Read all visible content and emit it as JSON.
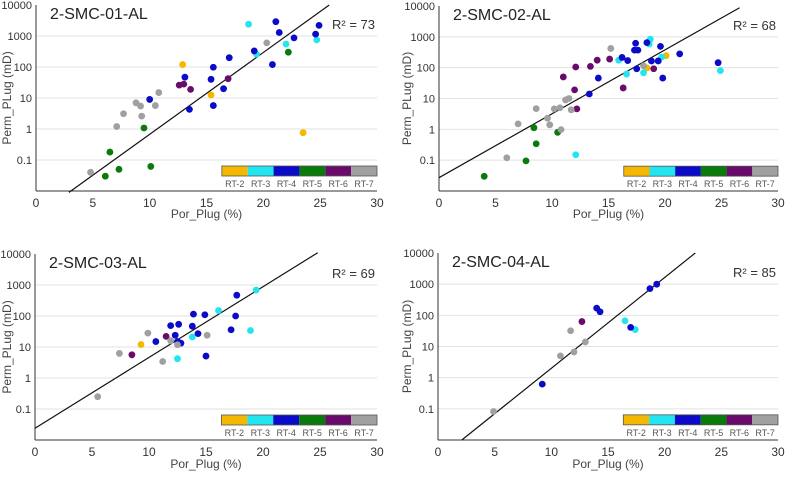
{
  "colors": {
    "RT-2": "#f5b800",
    "RT-3": "#22e5f0",
    "RT-4": "#0a0ac8",
    "RT-5": "#0a7a0a",
    "RT-6": "#6a0a6a",
    "RT-7": "#a0a0a0"
  },
  "chart_data": [
    {
      "type": "scatter",
      "title": "2-SMC-01-AL",
      "r2_label": "R² = 73",
      "xlabel": "Por_Plug (%)",
      "ylabel": "Perm_PLug (mD)",
      "xlim": [
        0,
        30
      ],
      "ylim": [
        0.01,
        10000
      ],
      "yscale": "log",
      "grid": "horizontal",
      "legend": "bottom-right",
      "x_ticks": [
        "0",
        "5",
        "10",
        "15",
        "20",
        "25",
        "30"
      ],
      "y_ticks": [
        "0.1",
        "1",
        "10",
        "100",
        "1000",
        "10000"
      ],
      "legend_entries": [
        "RT-2",
        "RT-3",
        "RT-4",
        "RT-5",
        "RT-6",
        "RT-7"
      ],
      "trendline": {
        "x": [
          2.9,
          25.8
        ],
        "y": [
          0.009,
          10000
        ]
      },
      "series": [
        {
          "name": "RT-2",
          "x": [
            12.9,
            15.4,
            23.5
          ],
          "y": [
            120,
            12.5,
            0.76
          ]
        },
        {
          "name": "RT-3",
          "x": [
            18.7,
            24.7,
            22.0,
            19.4
          ],
          "y": [
            2400,
            750,
            550,
            260
          ]
        },
        {
          "name": "RT-4",
          "x": [
            21.1,
            21.4,
            24.9,
            24.6,
            22.7,
            19.2,
            20.8,
            17.0,
            15.6,
            13.1,
            15.4,
            16.5,
            10.0,
            15.6,
            13.5
          ],
          "y": [
            2900,
            1300,
            2200,
            1150,
            870,
            330,
            120,
            200,
            98,
            47,
            40,
            20,
            9,
            5.7,
            4.3
          ]
        },
        {
          "name": "RT-5",
          "x": [
            22.2,
            9.5,
            6.5,
            10.1,
            7.3,
            6.1
          ],
          "y": [
            300,
            1.08,
            0.18,
            0.062,
            0.05,
            0.03
          ]
        },
        {
          "name": "RT-6",
          "x": [
            16.9,
            12.6,
            13.0,
            13.6
          ],
          "y": [
            42,
            26,
            28,
            19
          ]
        },
        {
          "name": "RT-7",
          "x": [
            20.3,
            10.8,
            8.8,
            9.2,
            10.5,
            7.7,
            9.3,
            7.1,
            4.8
          ],
          "y": [
            600,
            15,
            7,
            5.5,
            5.7,
            3.1,
            2.6,
            1.2,
            0.04
          ]
        }
      ]
    },
    {
      "type": "scatter",
      "title": "2-SMC-02-AL",
      "r2_label": "R² = 68",
      "xlabel": "Por_Plug (%)",
      "ylabel": "Perm_PLug (mD)",
      "xlim": [
        0,
        30
      ],
      "ylim": [
        0.01,
        10000
      ],
      "yscale": "log",
      "grid": "horizontal",
      "legend": "bottom-right",
      "x_ticks": [
        "0",
        "5",
        "10",
        "15",
        "20",
        "25",
        "30"
      ],
      "y_ticks": [
        "0.1",
        "1",
        "10",
        "100",
        "1000",
        "10000"
      ],
      "legend_entries": [
        "RT-2",
        "RT-3",
        "RT-4",
        "RT-5",
        "RT-6",
        "RT-7"
      ],
      "trendline": {
        "x": [
          0,
          26.6
        ],
        "y": [
          0.027,
          8800
        ]
      },
      "series": [
        {
          "name": "RT-2",
          "x": [
            20.1,
            18.4
          ],
          "y": [
            245,
            98
          ]
        },
        {
          "name": "RT-3",
          "x": [
            18.7,
            18.6,
            19.7,
            15.9,
            24.9,
            16.6,
            18.1,
            12.1
          ],
          "y": [
            840,
            580,
            220,
            175,
            80,
            62,
            68,
            0.15
          ]
        },
        {
          "name": "RT-4",
          "x": [
            18.4,
            17.4,
            19.6,
            17.3,
            17.6,
            21.3,
            16.2,
            16.7,
            18.8,
            19.4,
            24.7,
            17.5,
            14.1,
            19.8,
            13.3
          ],
          "y": [
            650,
            620,
            490,
            370,
            370,
            280,
            215,
            170,
            165,
            165,
            145,
            92,
            46,
            46,
            14
          ]
        },
        {
          "name": "RT-5",
          "x": [
            8.4,
            10.5,
            8.6,
            7.7,
            4.0
          ],
          "y": [
            1.13,
            0.8,
            0.34,
            0.095,
            0.03
          ]
        },
        {
          "name": "RT-6",
          "x": [
            15.1,
            14.0,
            12.1,
            13.4,
            19.0,
            11.0,
            16.3,
            12.0,
            12.2
          ],
          "y": [
            190,
            175,
            105,
            110,
            92,
            50,
            22,
            19,
            4.6
          ]
        },
        {
          "name": "RT-7",
          "x": [
            15.2,
            18.1,
            11.2,
            11.5,
            8.6,
            10.2,
            10.7,
            11.7,
            9.6,
            7.0,
            9.8,
            10.8,
            6.0
          ],
          "y": [
            420,
            115,
            9,
            10,
            4.7,
            4.6,
            5,
            4.3,
            2.3,
            1.5,
            1.4,
            0.98,
            0.12
          ]
        }
      ]
    },
    {
      "type": "scatter",
      "title": "2-SMC-03-AL",
      "r2_label": "R² = 69",
      "xlabel": "Por_Plug (%)",
      "ylabel": "Perm_PLug (mD)",
      "xlim": [
        0,
        30
      ],
      "ylim": [
        0.01,
        10000
      ],
      "yscale": "log",
      "grid": "horizontal",
      "legend": "bottom-right",
      "x_ticks": [
        "0",
        "5",
        "10",
        "15",
        "20",
        "25",
        "30"
      ],
      "y_ticks": [
        "0.1",
        "1",
        "10",
        "100",
        "1000",
        "10000"
      ],
      "legend_entries": [
        "RT-2",
        "RT-3",
        "RT-4",
        "RT-5",
        "RT-6",
        "RT-7"
      ],
      "trendline": {
        "x": [
          0,
          24.8
        ],
        "y": [
          0.024,
          11000
        ]
      },
      "series": [
        {
          "name": "RT-2",
          "x": [
            9.3
          ],
          "y": [
            12
          ]
        },
        {
          "name": "RT-3",
          "x": [
            19.4,
            16.1,
            13.8,
            18.9,
            12.5
          ],
          "y": [
            690,
            150,
            21,
            34,
            4.2
          ]
        },
        {
          "name": "RT-4",
          "x": [
            17.7,
            13.9,
            14.9,
            17.6,
            12.6,
            11.9,
            13.8,
            14.3,
            12.3,
            17.2,
            10.6,
            12.5,
            12.8,
            15.0
          ],
          "y": [
            470,
            115,
            110,
            100,
            54,
            49,
            47,
            27,
            24,
            36,
            15,
            15,
            13.3,
            5.1
          ]
        },
        {
          "name": "RT-5",
          "x": [],
          "y": []
        },
        {
          "name": "RT-6",
          "x": [
            11.5,
            8.5
          ],
          "y": [
            22,
            5.6
          ]
        },
        {
          "name": "RT-7",
          "x": [
            9.9,
            15.1,
            11.9,
            12.5,
            7.4,
            11.2,
            5.5
          ],
          "y": [
            28,
            24,
            16,
            11.8,
            6.2,
            3.4,
            0.25
          ]
        }
      ]
    },
    {
      "type": "scatter",
      "title": "2-SMC-04-AL",
      "r2_label": "R² = 85",
      "xlabel": "Por_Plug (%)",
      "ylabel": "Perm_PLug (mD)",
      "xlim": [
        0,
        30
      ],
      "ylim": [
        0.01,
        10000
      ],
      "yscale": "log",
      "grid": "horizontal",
      "legend": "bottom-right",
      "x_ticks": [
        "0",
        "5",
        "10",
        "15",
        "20",
        "25",
        "30"
      ],
      "y_ticks": [
        "0.1",
        "1",
        "10",
        "100",
        "1000",
        "10000"
      ],
      "legend_entries": [
        "RT-2",
        "RT-3",
        "RT-4",
        "RT-5",
        "RT-6",
        "RT-7"
      ],
      "trendline": {
        "x": [
          2.1,
          22.7
        ],
        "y": [
          0.01,
          10000
        ]
      },
      "series": [
        {
          "name": "RT-2",
          "x": [],
          "y": []
        },
        {
          "name": "RT-3",
          "x": [
            16.5,
            17.4
          ],
          "y": [
            67,
            35
          ]
        },
        {
          "name": "RT-4",
          "x": [
            19.3,
            18.7,
            14.0,
            14.3,
            17.0,
            9.2
          ],
          "y": [
            1000,
            720,
            170,
            130,
            41,
            0.62
          ]
        },
        {
          "name": "RT-5",
          "x": [],
          "y": []
        },
        {
          "name": "RT-6",
          "x": [
            12.7
          ],
          "y": [
            63
          ]
        },
        {
          "name": "RT-7",
          "x": [
            11.7,
            13.0,
            12.0,
            10.8,
            4.9
          ],
          "y": [
            32,
            14,
            6.7,
            5,
            0.082
          ]
        }
      ]
    }
  ]
}
